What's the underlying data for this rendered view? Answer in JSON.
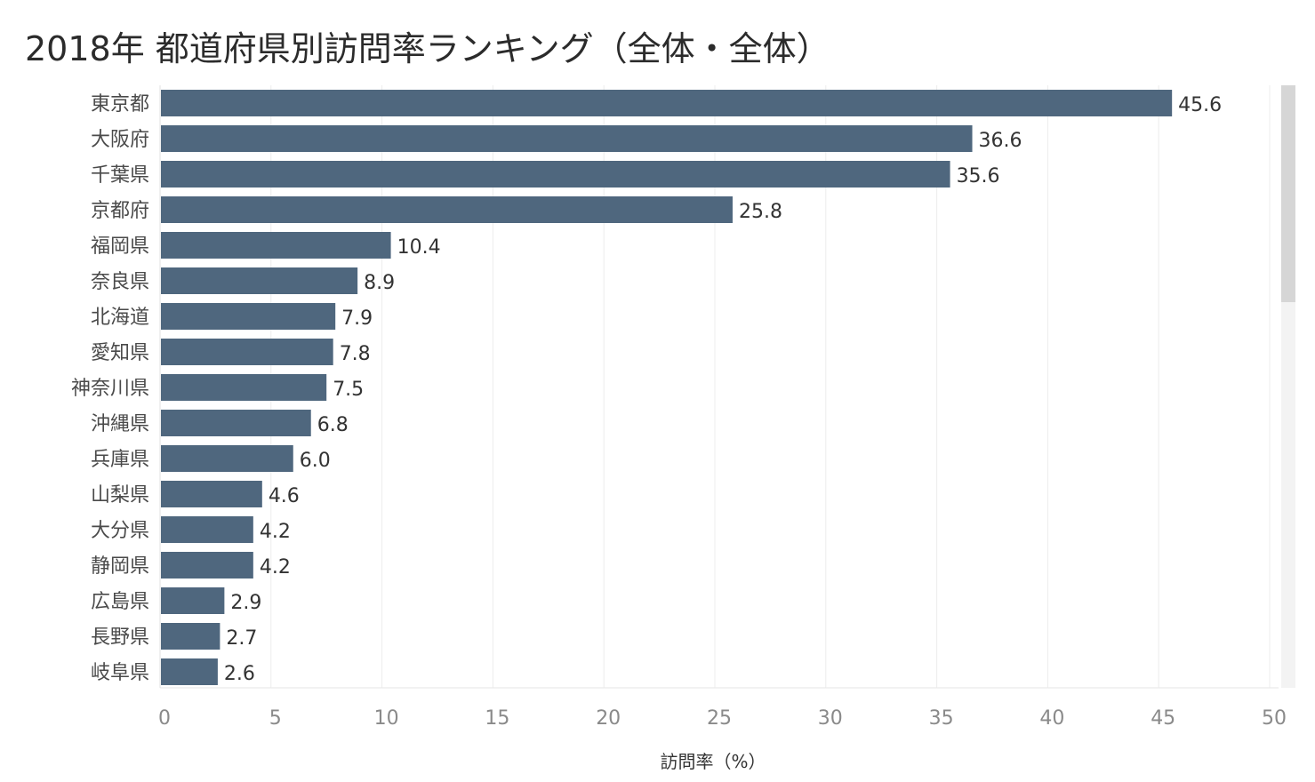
{
  "chart_data": {
    "type": "bar",
    "orientation": "horizontal",
    "title": "2018年 都道府県別訪問率ランキング（全体・全体）",
    "xlabel": "訪問率（%）",
    "ylabel": "",
    "xlim": [
      0,
      50
    ],
    "xticks": [
      0,
      5,
      10,
      15,
      20,
      25,
      30,
      35,
      40,
      45,
      50
    ],
    "grid": true,
    "bar_color": "#4f677e",
    "categories": [
      "東京都",
      "大阪府",
      "千葉県",
      "京都府",
      "福岡県",
      "奈良県",
      "北海道",
      "愛知県",
      "神奈川県",
      "沖縄県",
      "兵庫県",
      "山梨県",
      "大分県",
      "静岡県",
      "広島県",
      "長野県",
      "岐阜県"
    ],
    "values": [
      45.6,
      36.6,
      35.6,
      25.8,
      10.4,
      8.9,
      7.9,
      7.8,
      7.5,
      6.8,
      6.0,
      4.6,
      4.2,
      4.2,
      2.9,
      2.7,
      2.6
    ],
    "value_labels": [
      "45.6",
      "36.6",
      "35.6",
      "25.8",
      "10.4",
      "8.9",
      "7.9",
      "7.8",
      "7.5",
      "6.8",
      "6.0",
      "4.6",
      "4.2",
      "4.2",
      "2.9",
      "2.7",
      "2.6"
    ]
  },
  "scrollbar": {
    "visible": true
  }
}
